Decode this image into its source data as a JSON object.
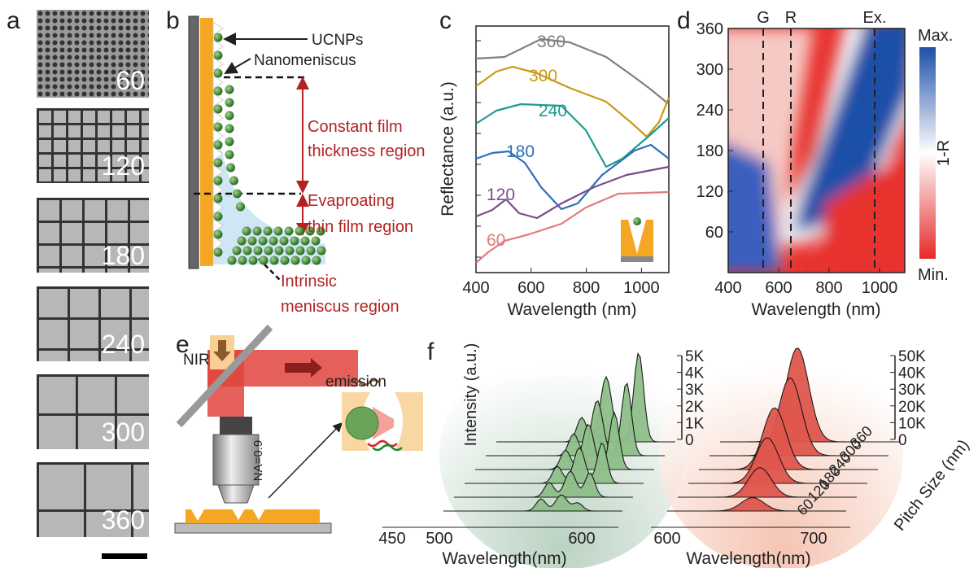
{
  "a": {
    "label": "a",
    "pitches": [
      60,
      120,
      180,
      240,
      300,
      360
    ]
  },
  "b": {
    "label": "b",
    "ucnps": "UCNPs",
    "nanomeniscus": "Nanomeniscus",
    "region_texts": [
      "Constant film",
      "thickness region",
      "Evaproating",
      "thin film region"
    ],
    "intrinsic": [
      "Intrinsic",
      "meniscus region"
    ]
  },
  "c": {
    "label": "c",
    "y_label": "Reflectance (a.u.)",
    "x_label": "Wavelength (nm)",
    "xticks": [
      400,
      600,
      800,
      1000
    ],
    "curve_labels": [
      360,
      300,
      240,
      180,
      120,
      60
    ]
  },
  "d": {
    "label": "d",
    "x_label": "Wavelength (nm)",
    "xticks": [
      400,
      600,
      800,
      1000
    ],
    "yticks": [
      360,
      300,
      240,
      180,
      120,
      60
    ],
    "lines": [
      "G",
      "R",
      "Ex."
    ],
    "colorbar": [
      "Max.",
      "1-R",
      "Min."
    ]
  },
  "e": {
    "label": "e",
    "nir": "NIR",
    "emission": "emission",
    "na": "NA=0.9"
  },
  "f": {
    "label": "f",
    "y_label": "Intensity (a.u.)",
    "left": {
      "yticks": [
        "5K",
        "4K",
        "3K",
        "2K",
        "1K",
        "0"
      ],
      "xticks": [
        450,
        500,
        600
      ],
      "x_label": "Wavelength(nm)"
    },
    "right": {
      "yticks": [
        "50K",
        "40K",
        "30K",
        "20K",
        "10K",
        "0"
      ],
      "xticks": [
        600,
        700
      ],
      "x_label": "Wavelength(nm)",
      "z_label": "Pitch Size (nm)",
      "zticks": [
        360,
        300,
        240,
        180,
        120,
        60
      ]
    }
  }
}
